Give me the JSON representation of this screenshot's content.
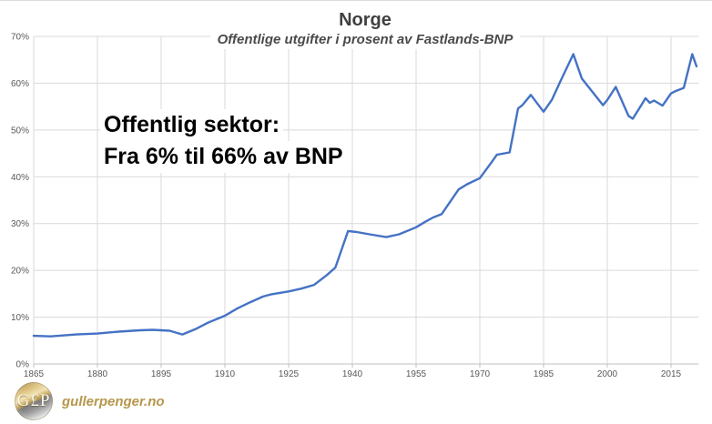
{
  "chart_data": {
    "type": "line",
    "title": "Norge",
    "subtitle": "Offentlige utgifter i prosent av Fastlands-BNP",
    "series": [
      {
        "name": "Offentlige utgifter i prosent av Fastlands-BNP",
        "points": [
          [
            1865,
            6.0
          ],
          [
            1869,
            5.9
          ],
          [
            1875,
            6.3
          ],
          [
            1880,
            6.5
          ],
          [
            1885,
            6.9
          ],
          [
            1890,
            7.2
          ],
          [
            1893,
            7.3
          ],
          [
            1897,
            7.1
          ],
          [
            1900,
            6.3
          ],
          [
            1903,
            7.4
          ],
          [
            1906,
            8.8
          ],
          [
            1910,
            10.3
          ],
          [
            1913,
            11.9
          ],
          [
            1916,
            13.2
          ],
          [
            1919,
            14.4
          ],
          [
            1921,
            14.9
          ],
          [
            1925,
            15.5
          ],
          [
            1928,
            16.1
          ],
          [
            1931,
            16.9
          ],
          [
            1934,
            19.0
          ],
          [
            1936,
            20.6
          ],
          [
            1939,
            28.4
          ],
          [
            1941,
            28.2
          ],
          [
            1944,
            27.7
          ],
          [
            1948,
            27.1
          ],
          [
            1951,
            27.7
          ],
          [
            1955,
            29.2
          ],
          [
            1957,
            30.3
          ],
          [
            1959,
            31.3
          ],
          [
            1961,
            32.0
          ],
          [
            1965,
            37.3
          ],
          [
            1967,
            38.4
          ],
          [
            1970,
            39.7
          ],
          [
            1973,
            43.4
          ],
          [
            1974,
            44.7
          ],
          [
            1977,
            45.2
          ],
          [
            1979,
            54.6
          ],
          [
            1980,
            55.3
          ],
          [
            1982,
            57.5
          ],
          [
            1985,
            53.9
          ],
          [
            1987,
            56.5
          ],
          [
            1989,
            60.5
          ],
          [
            1992,
            66.2
          ],
          [
            1994,
            61.0
          ],
          [
            1999,
            55.3
          ],
          [
            2000,
            56.4
          ],
          [
            2002,
            59.2
          ],
          [
            2005,
            53.0
          ],
          [
            2006,
            52.4
          ],
          [
            2008,
            55.3
          ],
          [
            2009,
            56.8
          ],
          [
            2010,
            55.8
          ],
          [
            2011,
            56.3
          ],
          [
            2013,
            55.2
          ],
          [
            2015,
            57.8
          ],
          [
            2016,
            58.3
          ],
          [
            2018,
            59.0
          ],
          [
            2020,
            66.2
          ],
          [
            2021,
            63.6
          ]
        ]
      }
    ],
    "xlim": [
      1865,
      2021.5
    ],
    "ylim": [
      0,
      70
    ],
    "x_ticks": [
      1865,
      1880,
      1895,
      1910,
      1925,
      1940,
      1955,
      1970,
      1985,
      2000,
      2015
    ],
    "y_ticks": [
      0,
      10,
      20,
      30,
      40,
      50,
      60,
      70
    ],
    "y_tick_suffix": "%",
    "grid": true,
    "legend": "none",
    "line_color": "#4472C4",
    "grid_color": "#D9D9D9",
    "axis_color": "#BFBFBF",
    "tick_label_color": "#595959",
    "title_color": "#404040"
  },
  "annotation": {
    "line1": "Offentlig sektor:",
    "line2": "Fra 6% til 66% av BNP"
  },
  "footer": {
    "monogram": "G£P",
    "site": "gullerpenger.no",
    "site_color": "#B5974B"
  }
}
